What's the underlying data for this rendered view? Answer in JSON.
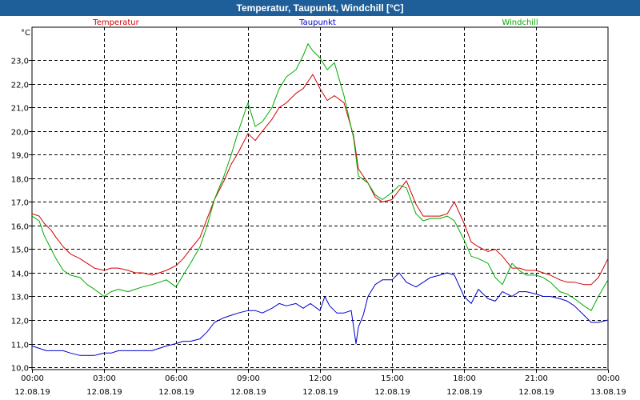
{
  "window": {
    "title": "Temperatur, Taupunkt, Windchill [°C]"
  },
  "chart_data": {
    "type": "line",
    "title": "Temperatur, Taupunkt, Windchill [°C]",
    "ylabel": "°C",
    "xlabel": "",
    "ylim": [
      9.9,
      24.4
    ],
    "xlim": [
      0,
      24
    ],
    "grid": true,
    "y_ticks": [
      "10,0",
      "11,0",
      "12,0",
      "13,0",
      "14,0",
      "15,0",
      "16,0",
      "17,0",
      "18,0",
      "19,0",
      "20,0",
      "21,0",
      "22,0",
      "23,0"
    ],
    "y_tick_values": [
      10,
      11,
      12,
      13,
      14,
      15,
      16,
      17,
      18,
      19,
      20,
      21,
      22,
      23
    ],
    "x_ticks": [
      {
        "time": "00:00",
        "date": "12.08.19",
        "hour": 0
      },
      {
        "time": "03:00",
        "date": "12.08.19",
        "hour": 3
      },
      {
        "time": "06:00",
        "date": "12.08.19",
        "hour": 6
      },
      {
        "time": "09:00",
        "date": "12.08.19",
        "hour": 9
      },
      {
        "time": "12:00",
        "date": "12.08.19",
        "hour": 12
      },
      {
        "time": "15:00",
        "date": "12.08.19",
        "hour": 15
      },
      {
        "time": "18:00",
        "date": "12.08.19",
        "hour": 18
      },
      {
        "time": "21:00",
        "date": "12.08.19",
        "hour": 21
      },
      {
        "time": "00:00",
        "date": "13.08.19",
        "hour": 24
      }
    ],
    "x_unit": "hours since 00:00 12.08.19",
    "series": [
      {
        "name": "Temperatur",
        "color": "#d40000",
        "x": [
          0,
          0.3,
          0.5,
          0.8,
          1,
          1.3,
          1.6,
          2,
          2.3,
          2.6,
          3,
          3.3,
          3.6,
          4,
          4.3,
          4.6,
          5,
          5.3,
          5.6,
          6,
          6.3,
          6.6,
          7,
          7.3,
          7.6,
          8,
          8.3,
          8.6,
          9,
          9.3,
          9.6,
          10,
          10.3,
          10.6,
          11,
          11.3,
          11.5,
          11.7,
          12,
          12.3,
          12.6,
          13,
          13.2,
          13.4,
          13.6,
          14,
          14.3,
          14.6,
          15,
          15.3,
          15.6,
          16,
          16.3,
          16.6,
          17,
          17.3,
          17.6,
          18,
          18.3,
          18.6,
          19,
          19.3,
          19.6,
          20,
          20.3,
          20.6,
          21,
          21.3,
          21.6,
          22,
          22.3,
          22.6,
          23,
          23.3,
          23.6,
          24
        ],
        "values": [
          16.5,
          16.4,
          16.1,
          15.8,
          15.5,
          15.1,
          14.8,
          14.6,
          14.4,
          14.2,
          14.1,
          14.2,
          14.2,
          14.1,
          14.0,
          14.0,
          13.9,
          14.0,
          14.1,
          14.3,
          14.6,
          15.0,
          15.5,
          16.3,
          17.1,
          17.9,
          18.6,
          19.1,
          19.9,
          19.6,
          20.0,
          20.5,
          21.0,
          21.2,
          21.6,
          21.8,
          22.1,
          22.4,
          21.8,
          21.3,
          21.5,
          21.2,
          20.5,
          19.8,
          18.4,
          17.8,
          17.2,
          17.0,
          17.1,
          17.5,
          17.9,
          16.9,
          16.4,
          16.4,
          16.4,
          16.5,
          17.0,
          16.1,
          15.3,
          15.1,
          14.9,
          15.0,
          14.7,
          14.2,
          14.2,
          14.1,
          14.1,
          14.0,
          13.9,
          13.7,
          13.6,
          13.6,
          13.5,
          13.5,
          13.8,
          14.6
        ]
      },
      {
        "name": "Taupunkt",
        "color": "#0000cc",
        "x": [
          0,
          0.3,
          0.6,
          1,
          1.3,
          1.6,
          2,
          2.3,
          2.6,
          3,
          3.3,
          3.6,
          4,
          4.3,
          4.6,
          5,
          5.3,
          5.6,
          6,
          6.3,
          6.6,
          7,
          7.3,
          7.6,
          8,
          8.3,
          8.6,
          9,
          9.3,
          9.6,
          10,
          10.3,
          10.6,
          11,
          11.3,
          11.6,
          12,
          12.2,
          12.4,
          12.7,
          13,
          13.3,
          13.5,
          13.6,
          13.8,
          14,
          14.3,
          14.6,
          15,
          15.3,
          15.6,
          16,
          16.3,
          16.6,
          17,
          17.3,
          17.6,
          18,
          18.3,
          18.6,
          19,
          19.3,
          19.6,
          20,
          20.3,
          20.6,
          21,
          21.3,
          21.6,
          22,
          22.3,
          22.6,
          23,
          23.3,
          23.6,
          24
        ],
        "values": [
          10.9,
          10.8,
          10.7,
          10.7,
          10.7,
          10.6,
          10.5,
          10.5,
          10.5,
          10.6,
          10.6,
          10.7,
          10.7,
          10.7,
          10.7,
          10.7,
          10.8,
          10.9,
          11.0,
          11.1,
          11.1,
          11.2,
          11.5,
          11.9,
          12.1,
          12.2,
          12.3,
          12.4,
          12.4,
          12.3,
          12.5,
          12.7,
          12.6,
          12.7,
          12.5,
          12.7,
          12.4,
          13.0,
          12.6,
          12.3,
          12.3,
          12.4,
          11.0,
          11.7,
          12.2,
          13.0,
          13.5,
          13.7,
          13.7,
          14.0,
          13.6,
          13.4,
          13.6,
          13.8,
          13.9,
          14.0,
          13.9,
          13.0,
          12.7,
          13.3,
          12.9,
          12.8,
          13.2,
          13.0,
          13.2,
          13.2,
          13.1,
          13.0,
          13.0,
          12.9,
          12.8,
          12.6,
          12.2,
          11.9,
          11.9,
          12.0
        ]
      },
      {
        "name": "Windchill",
        "color": "#00aa00",
        "x": [
          0,
          0.3,
          0.5,
          0.8,
          1,
          1.3,
          1.6,
          2,
          2.3,
          2.6,
          3,
          3.3,
          3.6,
          4,
          4.3,
          4.6,
          5,
          5.3,
          5.6,
          6,
          6.3,
          6.6,
          7,
          7.3,
          7.6,
          8,
          8.3,
          8.6,
          9,
          9.3,
          9.6,
          10,
          10.3,
          10.6,
          11,
          11.3,
          11.5,
          11.7,
          12,
          12.3,
          12.6,
          13,
          13.2,
          13.4,
          13.6,
          14,
          14.3,
          14.6,
          15,
          15.3,
          15.6,
          16,
          16.3,
          16.6,
          17,
          17.3,
          17.6,
          18,
          18.3,
          18.6,
          19,
          19.3,
          19.6,
          20,
          20.3,
          20.6,
          21,
          21.3,
          21.6,
          22,
          22.3,
          22.6,
          23,
          23.3,
          23.6,
          24
        ],
        "values": [
          16.4,
          16.2,
          15.6,
          15.0,
          14.6,
          14.1,
          13.9,
          13.8,
          13.5,
          13.3,
          13.0,
          13.2,
          13.3,
          13.2,
          13.3,
          13.4,
          13.5,
          13.6,
          13.7,
          13.4,
          13.9,
          14.4,
          15.1,
          16.0,
          17.1,
          18.1,
          19.0,
          20.0,
          21.2,
          20.2,
          20.4,
          21.0,
          21.8,
          22.3,
          22.6,
          23.2,
          23.7,
          23.4,
          23.1,
          22.6,
          22.9,
          21.5,
          20.6,
          19.7,
          18.1,
          17.8,
          17.3,
          17.1,
          17.4,
          17.7,
          17.6,
          16.5,
          16.2,
          16.3,
          16.3,
          16.4,
          16.2,
          15.4,
          14.7,
          14.6,
          14.4,
          13.8,
          13.5,
          14.4,
          14.1,
          13.9,
          13.9,
          13.8,
          13.6,
          13.2,
          13.1,
          12.9,
          12.6,
          12.4,
          13.0,
          13.7
        ]
      }
    ]
  }
}
